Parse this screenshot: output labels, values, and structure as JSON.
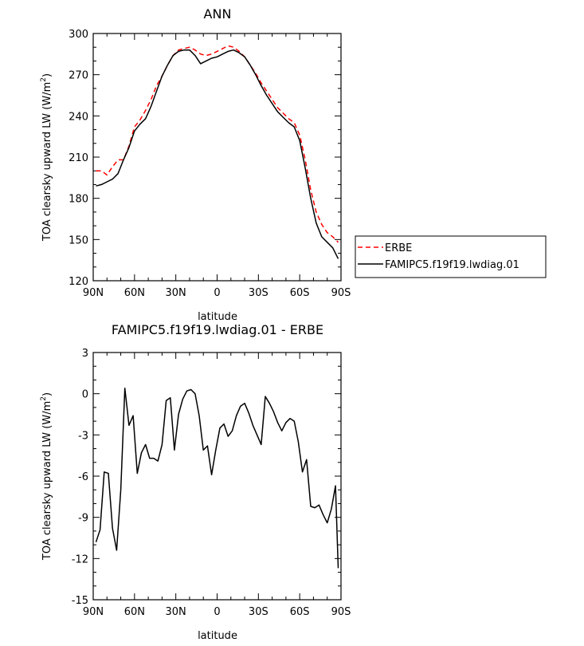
{
  "chart_data": [
    {
      "type": "line",
      "title": "ANN",
      "xlabel": "latitude",
      "ylabel": "TOA clearsky upward LW (W/m",
      "ylabel_sup": "2",
      "ylabel_close": ")",
      "xlim": [
        90,
        -90
      ],
      "ylim": [
        120,
        300
      ],
      "xticks": [
        90,
        60,
        30,
        0,
        -30,
        -60,
        -90
      ],
      "xtick_labels": [
        "90N",
        "60N",
        "30N",
        "0",
        "30S",
        "60S",
        "90S"
      ],
      "yticks": [
        120,
        150,
        180,
        210,
        240,
        270,
        300
      ],
      "ytick_labels": [
        "120",
        "150",
        "180",
        "210",
        "240",
        "270",
        "300"
      ],
      "legend_position": "right",
      "series": [
        {
          "name": "ERBE",
          "color": "#ff0000",
          "dash": "dashed",
          "x": [
            88,
            84,
            80,
            76,
            72,
            68,
            64,
            60,
            56,
            52,
            48,
            44,
            40,
            36,
            32,
            28,
            24,
            20,
            16,
            12,
            8,
            4,
            0,
            -4,
            -8,
            -12,
            -16,
            -20,
            -24,
            -28,
            -32,
            -36,
            -40,
            -44,
            -48,
            -52,
            -56,
            -60,
            -64,
            -68,
            -72,
            -76,
            -80,
            -84,
            -88
          ],
          "y": [
            200,
            200,
            197,
            203,
            208,
            208,
            218,
            232,
            237,
            244,
            252,
            262,
            269,
            277,
            284,
            288,
            289,
            290,
            288,
            285,
            284,
            285,
            287,
            289,
            291,
            290,
            287,
            283,
            277,
            271,
            264,
            258,
            252,
            246,
            242,
            238,
            235,
            226,
            208,
            186,
            170,
            161,
            155,
            152,
            148
          ]
        },
        {
          "name": "FAMIPC5.f19f19.lwdiag.01",
          "color": "#000000",
          "dash": "solid",
          "x": [
            88,
            84,
            80,
            76,
            72,
            68,
            64,
            60,
            56,
            52,
            48,
            44,
            40,
            36,
            32,
            28,
            24,
            20,
            16,
            12,
            8,
            4,
            0,
            -4,
            -8,
            -12,
            -16,
            -20,
            -24,
            -28,
            -32,
            -36,
            -40,
            -44,
            -48,
            -52,
            -56,
            -60,
            -64,
            -68,
            -72,
            -76,
            -80,
            -84,
            -88
          ],
          "y": [
            189,
            190,
            192,
            194,
            198,
            208,
            217,
            229,
            234,
            238,
            247,
            258,
            269,
            277,
            284,
            287,
            288,
            288,
            284,
            278,
            280,
            282,
            283,
            285,
            287,
            288,
            286,
            283,
            277,
            270,
            262,
            255,
            249,
            243,
            239,
            235,
            232,
            222,
            202,
            180,
            162,
            152,
            148,
            144,
            136
          ]
        }
      ]
    },
    {
      "type": "line",
      "title": "FAMIPC5.f19f19.lwdiag.01 - ERBE",
      "xlabel": "latitude",
      "ylabel": "TOA clearsky upward LW (W/m",
      "ylabel_sup": "2",
      "ylabel_close": ")",
      "xlim": [
        90,
        -90
      ],
      "ylim": [
        -15,
        3
      ],
      "xticks": [
        90,
        60,
        30,
        0,
        -30,
        -60,
        -90
      ],
      "xtick_labels": [
        "90N",
        "60N",
        "30N",
        "0",
        "30S",
        "60S",
        "90S"
      ],
      "yticks": [
        -15,
        -12,
        -9,
        -6,
        -3,
        0,
        3
      ],
      "ytick_labels": [
        "-15",
        "-12",
        "-9",
        "-6",
        "-3",
        "0",
        "3"
      ],
      "series": [
        {
          "color": "#000000",
          "dash": "solid",
          "x": [
            88,
            85,
            82,
            79,
            76,
            73,
            70,
            67,
            64,
            61,
            58,
            55,
            52,
            49,
            46,
            43,
            40,
            37,
            34,
            31,
            28,
            25,
            22,
            19,
            16,
            13,
            10,
            7,
            4,
            1,
            -2,
            -5,
            -8,
            -11,
            -14,
            -17,
            -20,
            -23,
            -26,
            -29,
            -32,
            -35,
            -38,
            -41,
            -44,
            -47,
            -50,
            -53,
            -56,
            -59,
            -62,
            -65,
            -68,
            -71,
            -74,
            -77,
            -80,
            -83,
            -86,
            -88
          ],
          "y": [
            -10.8,
            -9.9,
            -5.7,
            -5.8,
            -9.8,
            -11.4,
            -7.0,
            0.4,
            -2.3,
            -1.6,
            -5.8,
            -4.3,
            -3.7,
            -4.7,
            -4.7,
            -4.9,
            -3.7,
            -0.5,
            -0.3,
            -4.1,
            -1.5,
            -0.4,
            0.2,
            0.3,
            0.0,
            -1.6,
            -4.1,
            -3.8,
            -5.9,
            -4.1,
            -2.5,
            -2.2,
            -3.1,
            -2.7,
            -1.6,
            -0.9,
            -0.7,
            -1.4,
            -2.3,
            -3.0,
            -3.7,
            -0.2,
            -0.7,
            -1.3,
            -2.1,
            -2.7,
            -2.1,
            -1.8,
            -2.0,
            -3.5,
            -5.7,
            -4.8,
            -8.2,
            -8.3,
            -8.1,
            -8.8,
            -9.4,
            -8.4,
            -6.7,
            -12.7
          ]
        }
      ]
    }
  ]
}
